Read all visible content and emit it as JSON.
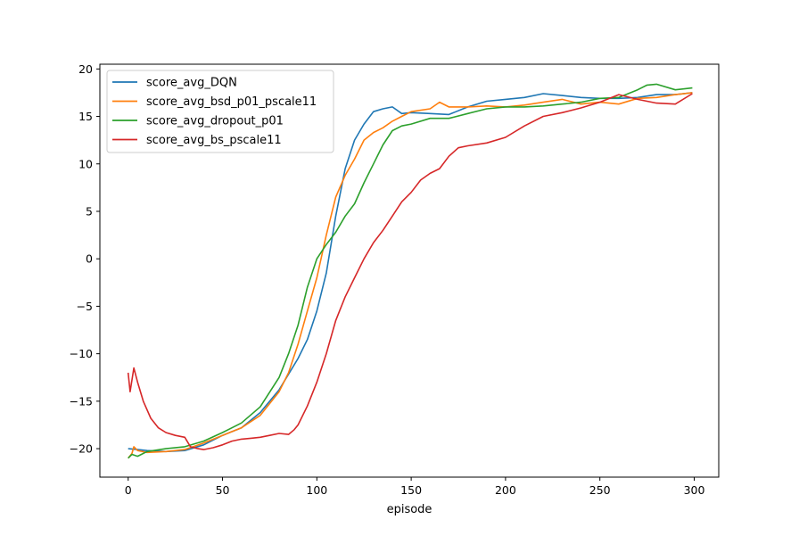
{
  "chart_data": {
    "type": "line",
    "xlabel": "episode",
    "ylabel": "",
    "title": "",
    "xlim": [
      -15,
      313
    ],
    "ylim": [
      -23,
      20.5
    ],
    "xticks": [
      0,
      50,
      100,
      150,
      200,
      250,
      300
    ],
    "yticks": [
      -20,
      -15,
      -10,
      -5,
      0,
      5,
      10,
      15,
      20
    ],
    "xtick_labels": [
      "0",
      "50",
      "100",
      "150",
      "200",
      "250",
      "300"
    ],
    "ytick_labels": [
      "−20",
      "−15",
      "−10",
      "−5",
      "0",
      "5",
      "10",
      "15",
      "20"
    ],
    "legend_position": "top-left",
    "grid": false,
    "series": [
      {
        "name": "score_avg_DQN",
        "color": "#1f77b4",
        "points": [
          [
            0,
            -20
          ],
          [
            5,
            -20.1
          ],
          [
            10,
            -20.2
          ],
          [
            20,
            -20.3
          ],
          [
            30,
            -20.2
          ],
          [
            40,
            -19.6
          ],
          [
            50,
            -18.6
          ],
          [
            60,
            -17.8
          ],
          [
            70,
            -16.2
          ],
          [
            80,
            -13.8
          ],
          [
            90,
            -10.5
          ],
          [
            95,
            -8.5
          ],
          [
            100,
            -5.5
          ],
          [
            105,
            -1.5
          ],
          [
            110,
            4.5
          ],
          [
            115,
            9.5
          ],
          [
            120,
            12.5
          ],
          [
            125,
            14.2
          ],
          [
            130,
            15.5
          ],
          [
            135,
            15.8
          ],
          [
            140,
            16
          ],
          [
            145,
            15.3
          ],
          [
            150,
            15.4
          ],
          [
            160,
            15.3
          ],
          [
            170,
            15.2
          ],
          [
            180,
            16
          ],
          [
            190,
            16.6
          ],
          [
            200,
            16.8
          ],
          [
            210,
            17
          ],
          [
            220,
            17.4
          ],
          [
            230,
            17.2
          ],
          [
            240,
            17
          ],
          [
            250,
            16.9
          ],
          [
            260,
            16.9
          ],
          [
            270,
            17
          ],
          [
            280,
            17.3
          ],
          [
            290,
            17.3
          ],
          [
            299,
            17.5
          ]
        ]
      },
      {
        "name": "score_avg_bsd_p01_pscale11",
        "color": "#ff7f0e",
        "points": [
          [
            0,
            -21
          ],
          [
            2,
            -20.5
          ],
          [
            3,
            -19.8
          ],
          [
            5,
            -20.2
          ],
          [
            10,
            -20.4
          ],
          [
            20,
            -20.3
          ],
          [
            30,
            -20.1
          ],
          [
            40,
            -19.4
          ],
          [
            50,
            -18.6
          ],
          [
            60,
            -17.8
          ],
          [
            70,
            -16.5
          ],
          [
            80,
            -14
          ],
          [
            85,
            -12
          ],
          [
            90,
            -9
          ],
          [
            95,
            -5.5
          ],
          [
            100,
            -2
          ],
          [
            105,
            2.5
          ],
          [
            110,
            6.5
          ],
          [
            115,
            8.8
          ],
          [
            120,
            10.5
          ],
          [
            125,
            12.5
          ],
          [
            130,
            13.3
          ],
          [
            135,
            13.8
          ],
          [
            140,
            14.5
          ],
          [
            145,
            15
          ],
          [
            150,
            15.5
          ],
          [
            160,
            15.8
          ],
          [
            165,
            16.5
          ],
          [
            170,
            16
          ],
          [
            180,
            16
          ],
          [
            190,
            16.1
          ],
          [
            200,
            16
          ],
          [
            210,
            16.2
          ],
          [
            220,
            16.5
          ],
          [
            230,
            16.8
          ],
          [
            240,
            16.3
          ],
          [
            250,
            16.5
          ],
          [
            260,
            16.3
          ],
          [
            270,
            16.9
          ],
          [
            280,
            17
          ],
          [
            290,
            17.3
          ],
          [
            299,
            17.5
          ]
        ]
      },
      {
        "name": "score_avg_dropout_p01",
        "color": "#2ca02c",
        "points": [
          [
            0,
            -21
          ],
          [
            2,
            -20.6
          ],
          [
            5,
            -20.8
          ],
          [
            10,
            -20.3
          ],
          [
            20,
            -20
          ],
          [
            30,
            -19.8
          ],
          [
            40,
            -19.2
          ],
          [
            50,
            -18.3
          ],
          [
            60,
            -17.3
          ],
          [
            70,
            -15.6
          ],
          [
            80,
            -12.5
          ],
          [
            85,
            -10
          ],
          [
            90,
            -7
          ],
          [
            95,
            -3
          ],
          [
            100,
            0
          ],
          [
            105,
            1.5
          ],
          [
            110,
            2.8
          ],
          [
            115,
            4.5
          ],
          [
            120,
            5.8
          ],
          [
            125,
            8
          ],
          [
            130,
            10
          ],
          [
            135,
            12
          ],
          [
            140,
            13.5
          ],
          [
            145,
            14
          ],
          [
            150,
            14.2
          ],
          [
            160,
            14.8
          ],
          [
            170,
            14.8
          ],
          [
            180,
            15.3
          ],
          [
            190,
            15.8
          ],
          [
            200,
            16
          ],
          [
            210,
            16
          ],
          [
            220,
            16.1
          ],
          [
            230,
            16.3
          ],
          [
            240,
            16.5
          ],
          [
            250,
            16.9
          ],
          [
            260,
            17
          ],
          [
            270,
            17.8
          ],
          [
            275,
            18.3
          ],
          [
            280,
            18.4
          ],
          [
            290,
            17.8
          ],
          [
            299,
            18
          ]
        ]
      },
      {
        "name": "score_avg_bs_pscale11",
        "color": "#d62728",
        "points": [
          [
            0,
            -12
          ],
          [
            1,
            -14
          ],
          [
            3,
            -11.5
          ],
          [
            5,
            -13
          ],
          [
            8,
            -15
          ],
          [
            12,
            -16.8
          ],
          [
            16,
            -17.8
          ],
          [
            20,
            -18.3
          ],
          [
            25,
            -18.6
          ],
          [
            30,
            -18.8
          ],
          [
            33,
            -19.8
          ],
          [
            37,
            -20
          ],
          [
            40,
            -20.1
          ],
          [
            45,
            -19.9
          ],
          [
            50,
            -19.6
          ],
          [
            55,
            -19.2
          ],
          [
            60,
            -19
          ],
          [
            65,
            -18.9
          ],
          [
            70,
            -18.8
          ],
          [
            75,
            -18.6
          ],
          [
            80,
            -18.4
          ],
          [
            85,
            -18.5
          ],
          [
            88,
            -18
          ],
          [
            90,
            -17.5
          ],
          [
            95,
            -15.5
          ],
          [
            100,
            -13
          ],
          [
            105,
            -10
          ],
          [
            110,
            -6.5
          ],
          [
            115,
            -4
          ],
          [
            120,
            -2
          ],
          [
            125,
            0
          ],
          [
            130,
            1.7
          ],
          [
            135,
            3
          ],
          [
            140,
            4.5
          ],
          [
            145,
            6
          ],
          [
            150,
            7
          ],
          [
            155,
            8.3
          ],
          [
            160,
            9
          ],
          [
            165,
            9.5
          ],
          [
            170,
            10.8
          ],
          [
            175,
            11.7
          ],
          [
            180,
            11.9
          ],
          [
            190,
            12.2
          ],
          [
            200,
            12.8
          ],
          [
            210,
            14
          ],
          [
            220,
            15
          ],
          [
            230,
            15.4
          ],
          [
            240,
            15.9
          ],
          [
            250,
            16.5
          ],
          [
            260,
            17.3
          ],
          [
            270,
            16.8
          ],
          [
            280,
            16.4
          ],
          [
            290,
            16.3
          ],
          [
            299,
            17.4
          ]
        ]
      }
    ]
  }
}
